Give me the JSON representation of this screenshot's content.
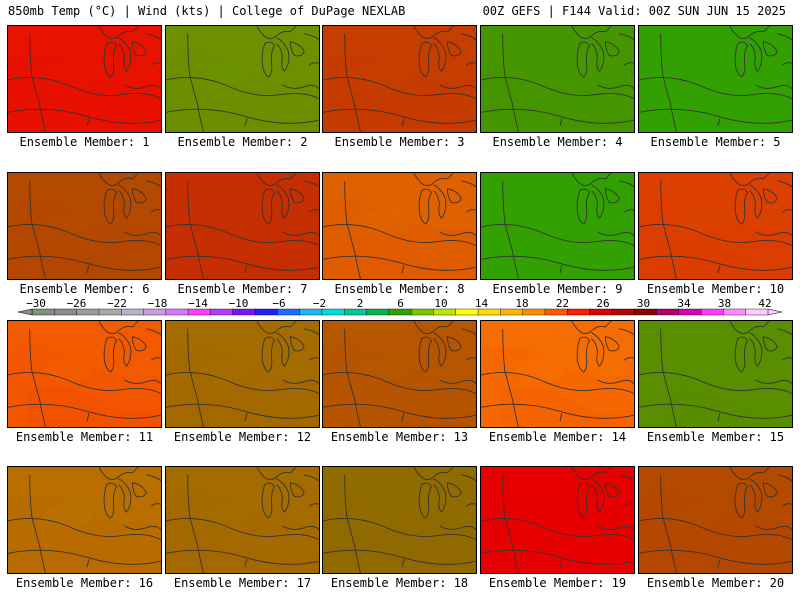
{
  "header": {
    "left": "850mb Temp (°C) | Wind (kts) | College of DuPage NEXLAB",
    "right": "00Z GEFS | F144 Valid: 00Z SUN JUN 15 2025"
  },
  "panels": [
    {
      "label": "Ensemble Member: 1"
    },
    {
      "label": "Ensemble Member: 2"
    },
    {
      "label": "Ensemble Member: 3"
    },
    {
      "label": "Ensemble Member: 4"
    },
    {
      "label": "Ensemble Member: 5"
    },
    {
      "label": "Ensemble Member: 6"
    },
    {
      "label": "Ensemble Member: 7"
    },
    {
      "label": "Ensemble Member: 8"
    },
    {
      "label": "Ensemble Member: 9"
    },
    {
      "label": "Ensemble Member: 10"
    },
    {
      "label": "Ensemble Member: 11"
    },
    {
      "label": "Ensemble Member: 12"
    },
    {
      "label": "Ensemble Member: 13"
    },
    {
      "label": "Ensemble Member: 14"
    },
    {
      "label": "Ensemble Member: 15"
    },
    {
      "label": "Ensemble Member: 16"
    },
    {
      "label": "Ensemble Member: 17"
    },
    {
      "label": "Ensemble Member: 18"
    },
    {
      "label": "Ensemble Member: 19"
    },
    {
      "label": "Ensemble Member: 20"
    }
  ],
  "colorbar": {
    "tick_labels": [
      "−30",
      "−26",
      "−22",
      "−18",
      "−14",
      "−10",
      "−6",
      "−2",
      "2",
      "6",
      "10",
      "14",
      "18",
      "22",
      "26",
      "30",
      "34",
      "38",
      "42"
    ],
    "colors": [
      "#7f917f",
      "#8c8c8c",
      "#9a9a9a",
      "#a9a9a9",
      "#b4b4c8",
      "#c8a0e0",
      "#d278ff",
      "#ff3cff",
      "#b43cff",
      "#7814ff",
      "#1e1eff",
      "#1e6eff",
      "#1eb4ff",
      "#00dcdc",
      "#00c896",
      "#00b450",
      "#32a000",
      "#78c800",
      "#bee600",
      "#ffff00",
      "#ffdc00",
      "#ffb400",
      "#ff8c00",
      "#ff5a00",
      "#ff1e00",
      "#dc0000",
      "#b40000",
      "#8c0000",
      "#b4006e",
      "#dc00b4",
      "#ff3cff",
      "#ff8cff",
      "#ffc8ff"
    ]
  }
}
